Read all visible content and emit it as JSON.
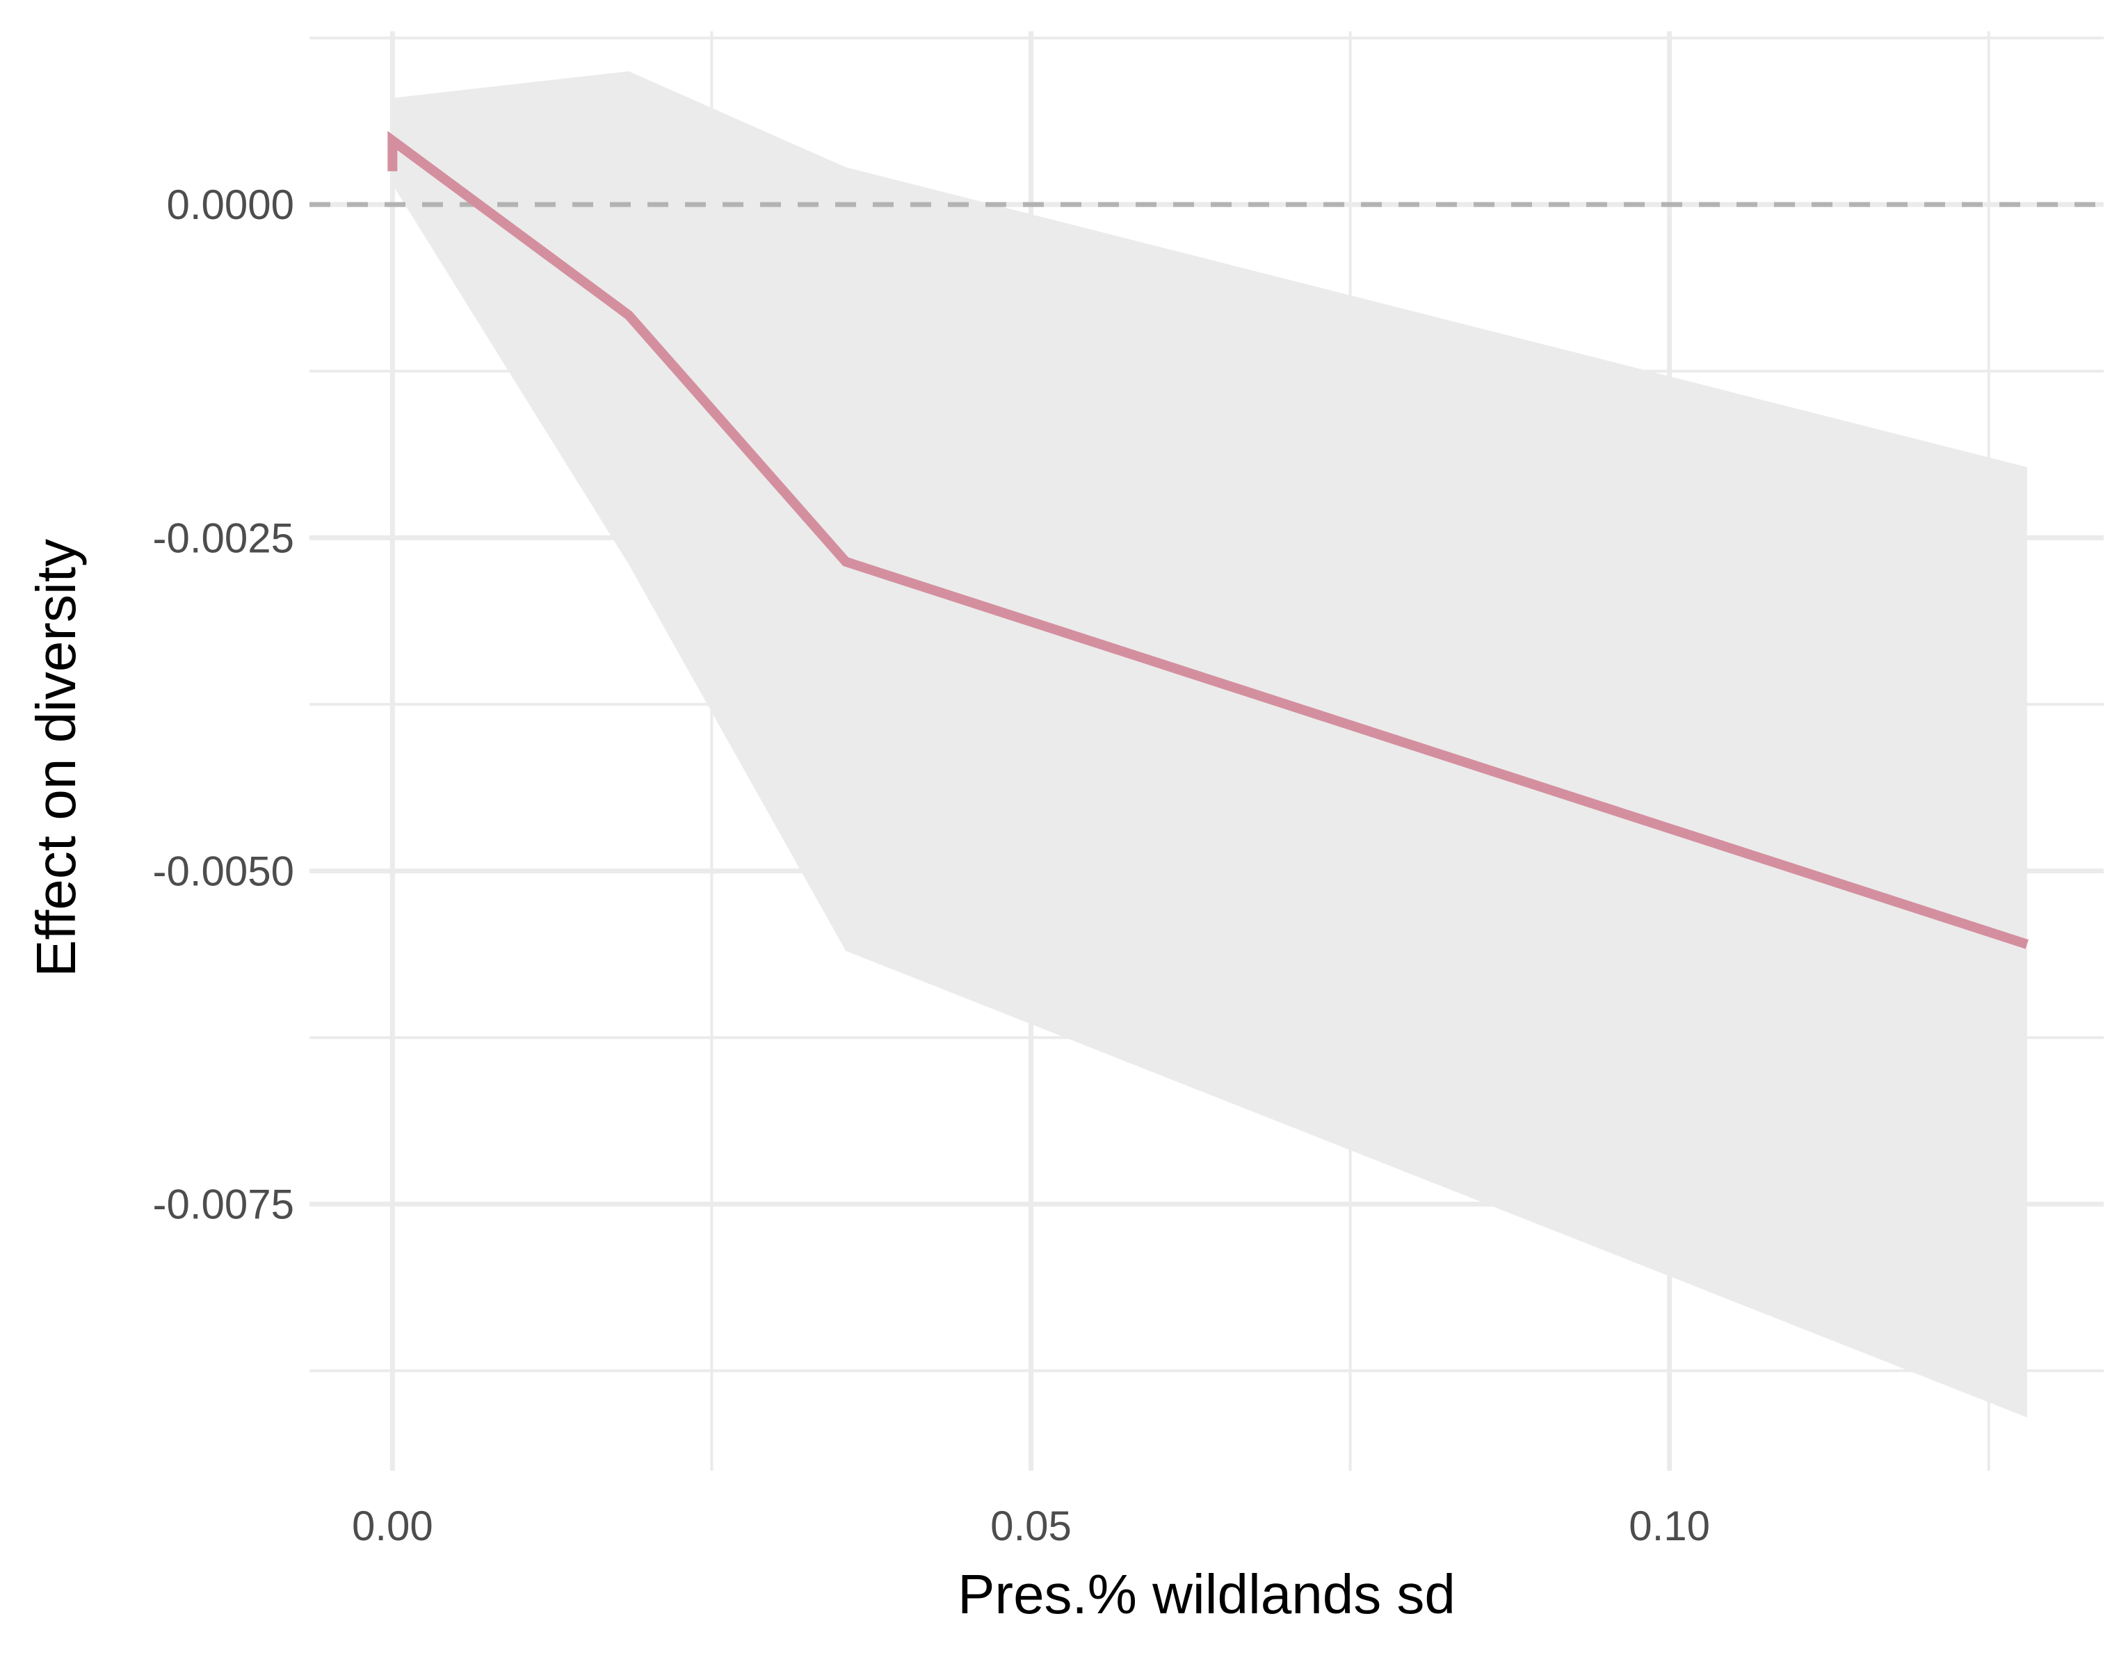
{
  "chart_data": {
    "type": "line",
    "title": "",
    "xlabel": "Pres.% wildlands sd",
    "ylabel": "Effect on diversity",
    "xlim": [
      -0.0065,
      0.134
    ],
    "ylim": [
      -0.0095,
      0.0013
    ],
    "x_ticks": [
      {
        "value": 0.0,
        "label": "0.00"
      },
      {
        "value": 0.05,
        "label": "0.05"
      },
      {
        "value": 0.1,
        "label": "0.10"
      }
    ],
    "x_minor_ticks": [
      0.025,
      0.075,
      0.125
    ],
    "y_ticks": [
      {
        "value": 0.0,
        "label": "0.0000"
      },
      {
        "value": -0.0025,
        "label": "-0.0025"
      },
      {
        "value": -0.005,
        "label": "-0.0050"
      },
      {
        "value": -0.0075,
        "label": "-0.0075"
      }
    ],
    "y_minor_ticks": [
      0.00125,
      -0.00125,
      -0.00375,
      -0.00625,
      -0.00875
    ],
    "grid": true,
    "reference_line": {
      "y": 0.0,
      "style": "dashed",
      "color": "#b3b3b3"
    },
    "series": [
      {
        "x": [
          0.0,
          0.0,
          0.0185,
          0.0355,
          0.128
        ],
        "y": [
          0.00025,
          0.00048,
          -0.00083,
          -0.00268,
          -0.00555
        ],
        "lower": [
          0.00015,
          0.00015,
          -0.0027,
          -0.0056,
          -0.0091
        ],
        "upper": [
          0.0008,
          0.0008,
          0.001,
          0.00028,
          -0.00197
        ],
        "color": "#d48f9f",
        "ribbon_color": "#ebebeb"
      }
    ],
    "legend": "none"
  }
}
